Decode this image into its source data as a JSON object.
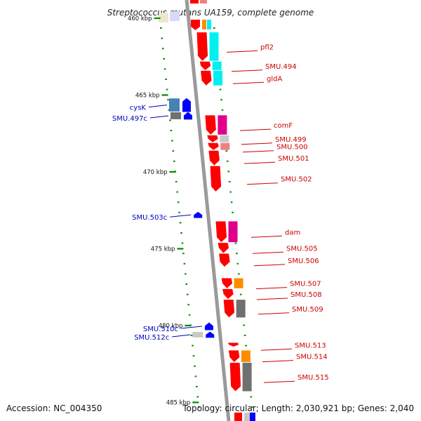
{
  "title": "Streptococcus mutans UA159, complete genome",
  "footer": {
    "accession": "Accession: NC_004350",
    "summary": "Topology: circular; Length: 2,030,921 bp; Genes: 2,040"
  },
  "colors": {
    "forward": "#ff0000",
    "reverse": "#0000ff",
    "backbone": "#9a9a9a",
    "tick": "#008800",
    "label_forward": "#cc0000",
    "label_reverse": "#0000bb",
    "cyan": "#00f0f0",
    "magenta": "#e0008c",
    "orange": "#ff8c00",
    "gray": "#707070",
    "light_gray": "#c8c8c8",
    "pink": "#f08080",
    "steel_blue": "#4682b4"
  },
  "kbp_labels": [
    {
      "kbp": 460,
      "text": "460 kbp"
    },
    {
      "kbp": 465,
      "text": "465 kbp"
    },
    {
      "kbp": 470,
      "text": "470 kbp"
    },
    {
      "kbp": 475,
      "text": "475 kbp"
    },
    {
      "kbp": 480,
      "text": "480 kbp"
    },
    {
      "kbp": 485,
      "text": "485 kbp"
    }
  ],
  "forward_genes": [
    {
      "name": "pfl2",
      "start_kbp": 460.9,
      "end_kbp": 462.8,
      "cog_color": "cyan"
    },
    {
      "name": "SMU.494",
      "start_kbp": 462.8,
      "end_kbp": 463.4,
      "cog_color": "cyan"
    },
    {
      "name": "gldA",
      "start_kbp": 463.4,
      "end_kbp": 464.4,
      "cog_color": "cyan"
    },
    {
      "name": "comF",
      "start_kbp": 466.3,
      "end_kbp": 467.6,
      "cog_color": "magenta"
    },
    {
      "name": "SMU.499",
      "start_kbp": 467.6,
      "end_kbp": 468.1,
      "cog_color": "light_gray"
    },
    {
      "name": "SMU.500",
      "start_kbp": 468.1,
      "end_kbp": 468.6,
      "cog_color": "pink"
    },
    {
      "name": "SMU.501",
      "start_kbp": 468.6,
      "end_kbp": 469.6,
      "cog_color": ""
    },
    {
      "name": "SMU.502",
      "start_kbp": 469.6,
      "end_kbp": 471.3,
      "cog_color": ""
    },
    {
      "name": "dam",
      "start_kbp": 473.2,
      "end_kbp": 474.6,
      "cog_color": "magenta"
    },
    {
      "name": "SMU.505",
      "start_kbp": 474.6,
      "end_kbp": 475.3,
      "cog_color": ""
    },
    {
      "name": "SMU.506",
      "start_kbp": 475.3,
      "end_kbp": 476.2,
      "cog_color": ""
    },
    {
      "name": "SMU.507",
      "start_kbp": 476.9,
      "end_kbp": 477.6,
      "cog_color": "orange"
    },
    {
      "name": "SMU.508",
      "start_kbp": 477.6,
      "end_kbp": 478.3,
      "cog_color": ""
    },
    {
      "name": "SMU.509",
      "start_kbp": 478.3,
      "end_kbp": 479.5,
      "cog_color": "gray"
    },
    {
      "name": "SMU.513",
      "start_kbp": 481.1,
      "end_kbp": 481.4,
      "cog_color": ""
    },
    {
      "name": "SMU.514",
      "start_kbp": 481.6,
      "end_kbp": 482.4,
      "cog_color": "orange"
    },
    {
      "name": "SMU.515",
      "start_kbp": 482.4,
      "end_kbp": 484.3,
      "cog_color": "gray"
    }
  ],
  "reverse_genes": [
    {
      "name": "cysK",
      "start_kbp": 465.2,
      "end_kbp": 466.1,
      "cog_color": "steel_blue"
    },
    {
      "name": "SMU.497c",
      "start_kbp": 466.1,
      "end_kbp": 466.6,
      "cog_color": "gray"
    },
    {
      "name": "SMU.503c",
      "start_kbp": 472.6,
      "end_kbp": 473.0,
      "cog_color": ""
    },
    {
      "name": "SMU.510c",
      "start_kbp": 479.8,
      "end_kbp": 480.3,
      "cog_color": ""
    },
    {
      "name": "SMU.512c",
      "start_kbp": 480.4,
      "end_kbp": 480.8,
      "cog_color": "light_gray"
    }
  ]
}
